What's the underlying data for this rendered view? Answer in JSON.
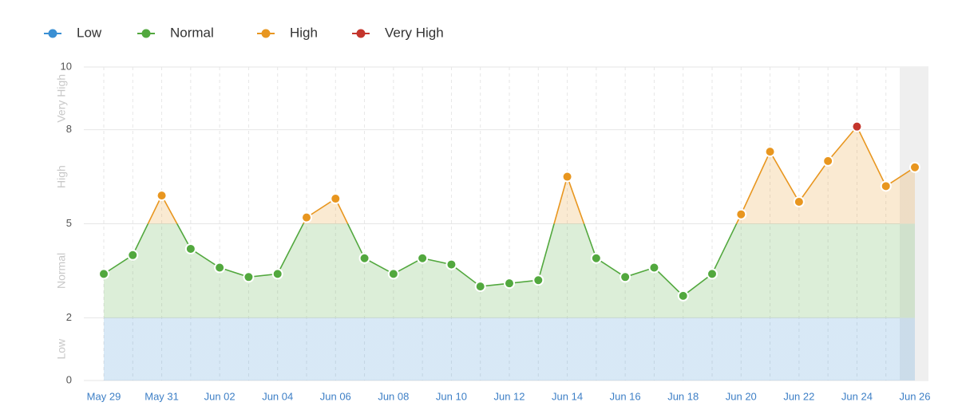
{
  "chart_data": {
    "type": "line",
    "categories": [
      "May 29",
      null,
      "May 31",
      null,
      "Jun 02",
      null,
      "Jun 04",
      null,
      "Jun 06",
      null,
      "Jun 08",
      null,
      "Jun 10",
      null,
      "Jun 12",
      null,
      "Jun 14",
      null,
      "Jun 16",
      null,
      "Jun 18",
      null,
      "Jun 20",
      null,
      "Jun 22",
      null,
      "Jun 24",
      null,
      "Jun 26"
    ],
    "values": [
      3.4,
      4.0,
      5.9,
      4.2,
      3.6,
      3.3,
      3.4,
      5.2,
      5.8,
      3.9,
      3.4,
      3.9,
      3.7,
      3.0,
      3.1,
      3.2,
      6.5,
      3.9,
      3.3,
      3.6,
      2.7,
      3.4,
      5.3,
      7.3,
      5.7,
      7.0,
      8.1,
      6.2,
      6.8
    ],
    "ylim": [
      0,
      10
    ],
    "yticks": [
      0,
      2,
      5,
      8,
      10
    ],
    "grid": true,
    "bands": [
      {
        "name": "Low",
        "range": [
          0,
          2
        ],
        "color": "#3a8fd3"
      },
      {
        "name": "Normal",
        "range": [
          2,
          5
        ],
        "color": "#52a83e"
      },
      {
        "name": "High",
        "range": [
          5,
          8
        ],
        "color": "#e8961f"
      },
      {
        "name": "Very High",
        "range": [
          8,
          10
        ],
        "color": "#c4352c"
      }
    ]
  }
}
